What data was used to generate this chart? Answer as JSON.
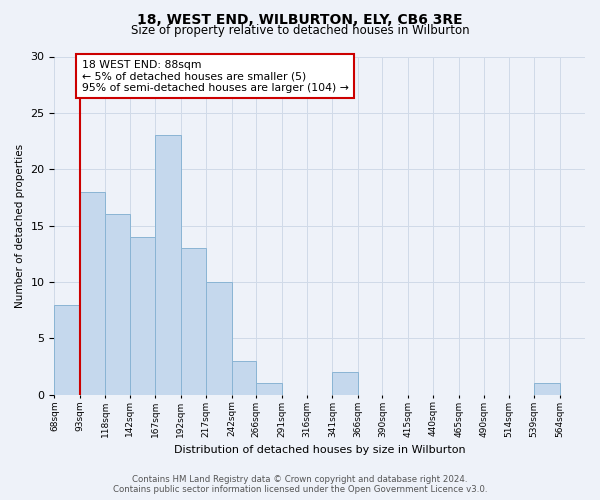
{
  "title": "18, WEST END, WILBURTON, ELY, CB6 3RE",
  "subtitle": "Size of property relative to detached houses in Wilburton",
  "xlabel": "Distribution of detached houses by size in Wilburton",
  "ylabel": "Number of detached properties",
  "bin_labels": [
    "68sqm",
    "93sqm",
    "118sqm",
    "142sqm",
    "167sqm",
    "192sqm",
    "217sqm",
    "242sqm",
    "266sqm",
    "291sqm",
    "316sqm",
    "341sqm",
    "366sqm",
    "390sqm",
    "415sqm",
    "440sqm",
    "465sqm",
    "490sqm",
    "514sqm",
    "539sqm",
    "564sqm"
  ],
  "bin_edges": [
    68,
    93,
    118,
    142,
    167,
    192,
    217,
    242,
    266,
    291,
    316,
    341,
    366,
    390,
    415,
    440,
    465,
    490,
    514,
    539,
    564
  ],
  "counts": [
    8,
    18,
    16,
    14,
    23,
    13,
    10,
    3,
    1,
    0,
    0,
    2,
    0,
    0,
    0,
    0,
    0,
    0,
    0,
    1,
    0
  ],
  "bar_color": "#c5d8ed",
  "bar_edge_color": "#8ab4d4",
  "grid_color": "#d0dae8",
  "property_line_x": 93,
  "annotation_title": "18 WEST END: 88sqm",
  "annotation_line1": "← 5% of detached houses are smaller (5)",
  "annotation_line2": "95% of semi-detached houses are larger (104) →",
  "annotation_box_facecolor": "#ffffff",
  "annotation_box_edgecolor": "#cc0000",
  "property_vline_color": "#cc0000",
  "footer_line1": "Contains HM Land Registry data © Crown copyright and database right 2024.",
  "footer_line2": "Contains public sector information licensed under the Open Government Licence v3.0.",
  "ylim": [
    0,
    30
  ],
  "yticks": [
    0,
    5,
    10,
    15,
    20,
    25,
    30
  ],
  "background_color": "#eef2f9"
}
